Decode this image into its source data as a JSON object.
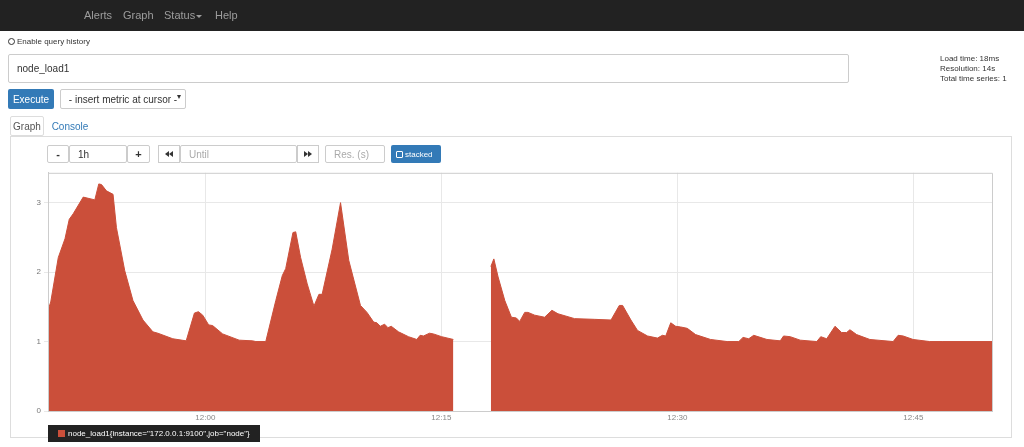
{
  "chart_data": {
    "type": "area",
    "annotations": [
      "Alerts",
      "Graph",
      "Status",
      "Help",
      "Enable query history",
      "node_load1",
      "Load time: 18ms",
      "Resolution: 14s",
      "Total time series: 1",
      "Execute",
      "- insert metric at cursor -",
      "Graph",
      "Console",
      "-",
      "1h",
      "+",
      "Until",
      "Res. (s)",
      "stacked"
    ],
    "x": [
      11.8333,
      11.8362,
      11.8442,
      11.8513,
      11.8558,
      11.86,
      11.8706,
      11.8829,
      11.8871,
      11.89,
      11.8952,
      11.9022,
      11.9058,
      11.9146,
      11.9233,
      11.9339,
      11.9444,
      11.9497,
      11.9655,
      11.9797,
      11.9884,
      11.9926,
      11.9972,
      12.0035,
      12.0077,
      12.0183,
      12.0358,
      12.0499,
      12.0535,
      12.064,
      12.0746,
      12.0815,
      12.0851,
      12.0928,
      12.0957,
      12.1009,
      12.1079,
      12.115,
      12.1203,
      12.1237,
      12.1343,
      12.1432,
      12.1519,
      12.1643,
      12.1712,
      12.1783,
      12.1817,
      12.1853,
      12.1899,
      12.1934,
      12.1969,
      12.2046,
      12.2152,
      12.224,
      12.2275,
      12.231,
      12.2374,
      12.2416,
      12.2503,
      12.2627,
      12.28,
      12.3024,
      12.3056,
      12.3101,
      12.3172,
      12.3242,
      12.3294,
      12.333,
      12.3383,
      12.3418,
      12.3488,
      12.3594,
      12.3671,
      12.3735,
      12.3911,
      12.4121,
      12.4297,
      12.4385,
      12.442,
      12.4508,
      12.4578,
      12.4684,
      12.4789,
      12.4842,
      12.4877,
      12.493,
      12.4982,
      12.5035,
      12.5105,
      12.5193,
      12.5352,
      12.5527,
      12.5651,
      12.5696,
      12.5756,
      12.5809,
      12.5949,
      12.609,
      12.6125,
      12.6196,
      12.6301,
      12.6477,
      12.6519,
      12.6582,
      12.667,
      12.674,
      12.6793,
      12.6828,
      12.6899,
      12.7039,
      12.7286,
      12.7339,
      12.7392,
      12.7497,
      12.7672,
      12.7813,
      12.8333
    ],
    "series": [
      {
        "name": "node_load1{instance=\"172.0.0.1:9100\",job=\"node\"}",
        "color": "#cb4f3a",
        "values": [
          1.45,
          1.57,
          2.21,
          2.48,
          2.76,
          2.84,
          3.08,
          3.04,
          3.27,
          3.26,
          3.17,
          3.12,
          2.64,
          2.02,
          1.59,
          1.31,
          1.14,
          1.12,
          1.04,
          1.01,
          1.41,
          1.43,
          1.38,
          1.24,
          1.23,
          1.11,
          1.02,
          1.01,
          1.0,
          1.0,
          1.59,
          1.95,
          2.05,
          2.57,
          2.58,
          2.21,
          1.83,
          1.51,
          1.68,
          1.68,
          2.33,
          3.0,
          2.17,
          1.52,
          1.42,
          1.28,
          1.27,
          1.22,
          1.25,
          1.2,
          1.22,
          1.14,
          1.07,
          1.03,
          1.09,
          1.08,
          1.12,
          1.11,
          1.07,
          1.03,
          null,
          2.08,
          2.19,
          1.93,
          1.59,
          1.35,
          1.34,
          1.29,
          1.42,
          1.42,
          1.38,
          1.35,
          1.45,
          1.4,
          1.33,
          1.32,
          1.31,
          1.52,
          1.52,
          1.31,
          1.16,
          1.08,
          1.05,
          1.09,
          1.08,
          1.27,
          1.22,
          1.21,
          1.19,
          1.1,
          1.03,
          1.0,
          1.0,
          1.06,
          1.04,
          1.09,
          1.03,
          1.01,
          1.08,
          1.07,
          1.02,
          1.0,
          1.07,
          1.04,
          1.22,
          1.13,
          1.13,
          1.17,
          1.1,
          1.03,
          1.0,
          1.09,
          1.08,
          1.03,
          1.0,
          1.0,
          1.0
        ]
      }
    ],
    "xlim": [
      11.8333,
      12.8333
    ],
    "xticks": [
      {
        "value": 12,
        "label": "12:00"
      },
      {
        "value": 12.25,
        "label": "12:15"
      },
      {
        "value": 12.5,
        "label": "12:30"
      },
      {
        "value": 12.75,
        "label": "12:45"
      }
    ],
    "ylim": [
      0,
      3.43
    ],
    "yticks": [
      0,
      1,
      2,
      3
    ],
    "grid": true,
    "legend": "bottom left"
  }
}
